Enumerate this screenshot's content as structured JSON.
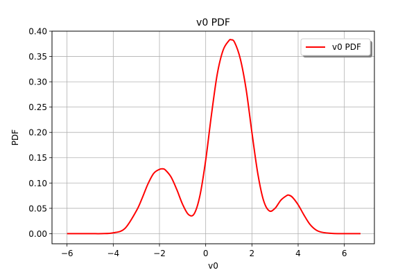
{
  "chart_data": {
    "type": "line",
    "title": "v0 PDF",
    "xlabel": "v0",
    "ylabel": "PDF",
    "xlim": [
      -6.65,
      7.3
    ],
    "ylim": [
      -0.02,
      0.4
    ],
    "xticks": [
      -6,
      -4,
      -2,
      0,
      2,
      4,
      6
    ],
    "xtick_labels": [
      "−6",
      "−4",
      "−2",
      "0",
      "2",
      "4",
      "6"
    ],
    "yticks": [
      0.0,
      0.05,
      0.1,
      0.15,
      0.2,
      0.25,
      0.3,
      0.35,
      0.4
    ],
    "ytick_labels": [
      "0.00",
      "0.05",
      "0.10",
      "0.15",
      "0.20",
      "0.25",
      "0.30",
      "0.35",
      "0.40"
    ],
    "grid": true,
    "legend_position": "top-right",
    "series": [
      {
        "name": "v0 PDF",
        "color": "#ff0000",
        "x": [
          -6.0,
          -5.0,
          -4.5,
          -4.0,
          -3.5,
          -3.0,
          -2.75,
          -2.5,
          -2.25,
          -2.0,
          -1.85,
          -1.75,
          -1.5,
          -1.25,
          -1.0,
          -0.75,
          -0.5,
          -0.25,
          0.0,
          0.25,
          0.5,
          0.75,
          1.0,
          1.1,
          1.25,
          1.5,
          1.75,
          2.0,
          2.25,
          2.5,
          2.75,
          3.0,
          3.25,
          3.5,
          3.6,
          3.75,
          4.0,
          4.25,
          4.5,
          4.75,
          5.0,
          5.5,
          6.0,
          6.7
        ],
        "y": [
          0.0,
          0.0,
          0.0,
          0.0015,
          0.01,
          0.045,
          0.07,
          0.098,
          0.119,
          0.127,
          0.128,
          0.126,
          0.112,
          0.087,
          0.058,
          0.038,
          0.039,
          0.075,
          0.145,
          0.235,
          0.315,
          0.362,
          0.381,
          0.383,
          0.378,
          0.345,
          0.285,
          0.2,
          0.12,
          0.066,
          0.045,
          0.05,
          0.066,
          0.075,
          0.076,
          0.072,
          0.057,
          0.037,
          0.019,
          0.008,
          0.003,
          0.0003,
          0.0,
          0.0
        ]
      }
    ]
  }
}
